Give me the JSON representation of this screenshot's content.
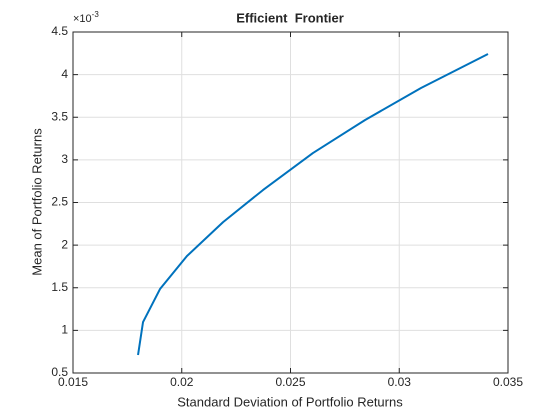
{
  "chart_data": {
    "type": "line",
    "title": "Efficient  Frontier",
    "x_label": "Standard Deviation of Portfolio Returns",
    "y_label": "Mean of Portfolio Returns",
    "y_multiplier": {
      "base": "×10",
      "exponent": "-3"
    },
    "x": [
      0.01799,
      0.01822,
      0.019,
      0.02024,
      0.0219,
      0.02374,
      0.02603,
      0.02843,
      0.031,
      0.03408
    ],
    "series": [
      {
        "color": "#0072bd",
        "values": [
          0.711,
          1.098,
          1.485,
          1.872,
          2.27,
          2.647,
          3.08,
          3.468,
          3.843,
          4.242
        ]
      }
    ],
    "xlim": [
      0.015,
      0.035
    ],
    "xticks": [
      0.015,
      0.02,
      0.025,
      0.03,
      0.035
    ],
    "ylim": [
      0.5,
      4.5
    ],
    "yticks": [
      0.5,
      1,
      1.5,
      2,
      2.5,
      3,
      3.5,
      4,
      4.5
    ],
    "grid": true
  }
}
